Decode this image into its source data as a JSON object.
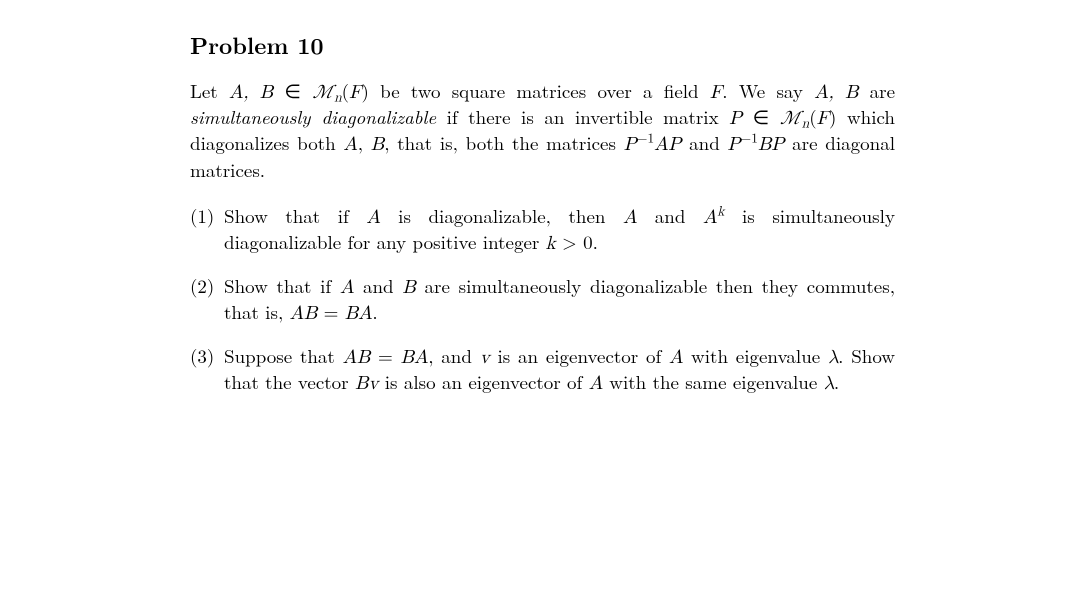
{
  "heading": "Problem 10",
  "intro": {
    "seg1": "Let ",
    "AB": "A, B",
    "seg2": " ∈ ",
    "Mn": "ℳ",
    "MnSub": "n",
    "seg3": "(",
    "F": "F",
    "seg4": ") be two square matrices over a field ",
    "F2": "F",
    "seg5": ".  We say ",
    "AB2": "A, B",
    "seg6": " are ",
    "term": "simultaneously diagonalizable",
    "seg7": " if there is an invertible matrix ",
    "P": "P",
    "seg8": " ∈ ",
    "Mn2": "ℳ",
    "MnSub2": "n",
    "seg9": "(",
    "F3": "F",
    "seg10": ") which diagonalizes both ",
    "A": "A",
    "commaB": ", ",
    "B": "B",
    "seg11": ", that is, both the matrices ",
    "PiAP": "P",
    "exp1": "−1",
    "AP": "AP",
    "andtxt": " and ",
    "PiBP": "P",
    "exp2": "−1",
    "BP": "BP",
    "seg12": " are diagonal matrices."
  },
  "parts": [
    {
      "num": "(1)",
      "seg1": "Show that if ",
      "A": "A",
      "seg2": " is diagonalizable, then ",
      "A2": "A",
      "and": " and ",
      "Ak_base": "A",
      "Ak_exp": "k",
      "seg3": " is simultaneously diagonalizable for any positive integer ",
      "k": "k",
      "gt": " > 0."
    },
    {
      "num": "(2)",
      "seg1": "Show that if ",
      "A": "A",
      "and": " and ",
      "B": "B",
      "seg2": " are simultaneously diagonalizable then they commutes, that is, ",
      "ABeq": "AB",
      "eq": " = ",
      "BA": "BA",
      "seg3": "."
    },
    {
      "num": "(3)",
      "seg1": "Suppose that ",
      "AB": "AB",
      "eq": " = ",
      "BA": "BA",
      "seg2": ", and ",
      "v": "v",
      "seg3": " is an eigenvector of ",
      "A": "A",
      "seg4": " with eigenvalue ",
      "lam": "λ",
      "seg5": ". Show that the vector ",
      "Bv": "Bv",
      "seg6": " is also an eigenvector of ",
      "A2": "A",
      "seg7": " with the same eigenvalue ",
      "lam2": "λ",
      "seg8": "."
    }
  ]
}
